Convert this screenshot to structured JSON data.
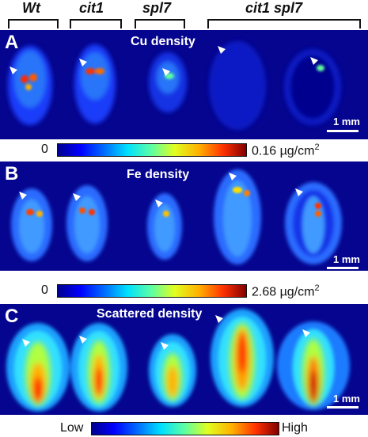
{
  "genotypes": [
    "Wt",
    "cit1",
    "spl7",
    "cit1 spl7"
  ],
  "panels": [
    {
      "letter": "A",
      "title": "Cu density",
      "scale": "1 mm",
      "colorbar": {
        "min": "0",
        "max_value": "0.16 µg/cm",
        "max_sup": "2"
      }
    },
    {
      "letter": "B",
      "title": "Fe density",
      "scale": "1 mm",
      "colorbar": {
        "min": "0",
        "max_value": "2.68 µg/cm",
        "max_sup": "2"
      }
    },
    {
      "letter": "C",
      "title": "Scattered density",
      "scale": "1 mm",
      "colorbar": {
        "min": "Low",
        "max": "High"
      }
    }
  ],
  "colors": {
    "background": "#05058f",
    "arrowhead": "#ffffff"
  },
  "icons": [
    "arrowhead-icon"
  ]
}
